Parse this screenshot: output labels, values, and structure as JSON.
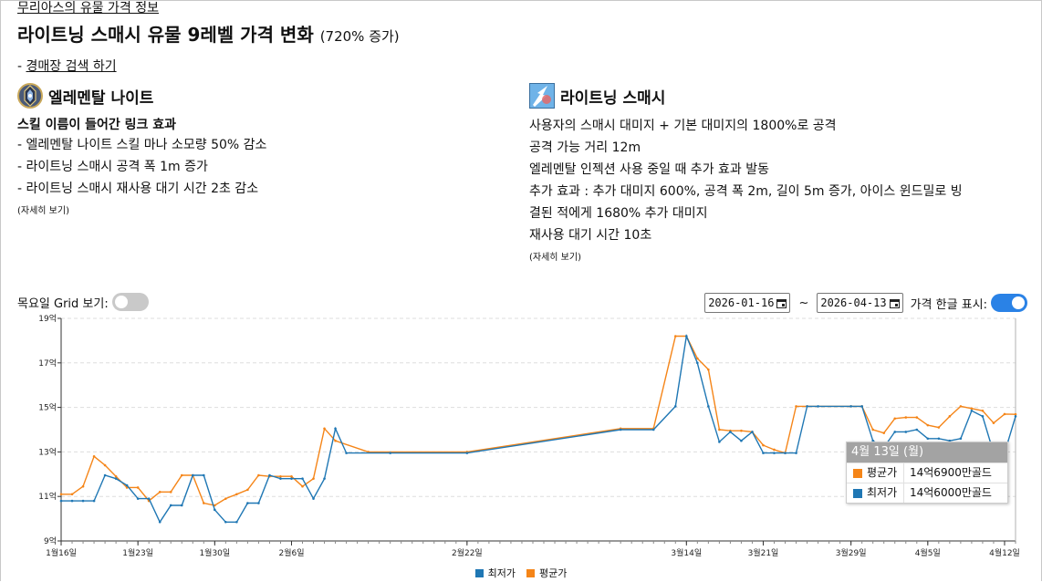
{
  "header": {
    "breadcrumb": "무리아스의 유물 가격 정보",
    "title": "라이트닝 스매시 유물 9레벨 가격 변화",
    "increase": "(720% 증가)",
    "auction_prefix": "- ",
    "auction_link": "경매장 검색 하기"
  },
  "left": {
    "name": "엘레멘탈 나이트",
    "icon": "elemental-knight-emblem-icon",
    "subtitle": "스킬 이름이 들어간 링크 효과",
    "lines": [
      "- 엘레멘탈 나이트 스킬 마나 소모량 50% 감소",
      "- 라이트닝 스매시 공격 폭 1m 증가",
      "- 라이트닝 스매시 재사용 대기 시간 2초 감소"
    ],
    "details": "(자세히 보기)"
  },
  "right": {
    "name": "라이트닝 스매시",
    "icon": "lightning-smash-skill-icon",
    "lines": [
      "사용자의 스매시 대미지 + 기본 대미지의 1800%로 공격",
      "공격 가능 거리 12m",
      "엘레멘탈 인젝션 사용 중일 때 추가 효과 발동",
      "추가 효과 : 추가 대미지 600%, 공격 폭 2m, 길이 5m 증가, 아이스 윈드밀로 빙",
      "결된 적에게 1680% 추가 대미지",
      "재사용 대기 시간 10초"
    ],
    "details": "(자세히 보기)"
  },
  "controls": {
    "grid_label": "목요일 Grid 보기:",
    "grid_on": false,
    "date_from": "2026-01-16",
    "date_to": "2026-04-13",
    "tilde": "~",
    "korean_label": "가격 한글 표시:",
    "korean_on": true
  },
  "tooltip": {
    "date": "4월 13일 (월)",
    "rows": [
      {
        "name": "평균가",
        "value": "14억6900만골드",
        "color": "#f58518"
      },
      {
        "name": "최저가",
        "value": "14억6000만골드",
        "color": "#1f77b4"
      }
    ]
  },
  "colors": {
    "min": "#1f77b4",
    "avg": "#f58518",
    "grid": "#dddddd",
    "axis": "#333333"
  },
  "chart_data": {
    "type": "line",
    "title": "",
    "xlabel": "",
    "ylabel": "",
    "ylim": [
      9,
      19
    ],
    "x_range": [
      "2026-01-16",
      "2026-04-13"
    ],
    "y_ticks": [
      9,
      11,
      13,
      15,
      17,
      19
    ],
    "y_tick_labels": [
      "9억",
      "11억",
      "13억",
      "15억",
      "17억",
      "19억"
    ],
    "x_ticks": [
      "2026-01-16",
      "2026-01-23",
      "2026-01-30",
      "2026-02-06",
      "2026-02-22",
      "2026-03-14",
      "2026-03-21",
      "2026-03-29",
      "2026-04-05",
      "2026-04-12"
    ],
    "x_tick_labels": [
      "1월16일",
      "1월23일",
      "1월30일",
      "2월6일",
      "2월22일",
      "3월14일",
      "3월21일",
      "3월29일",
      "4월5일",
      "4월12일"
    ],
    "legend_position": "bottom",
    "hover_date": "2026-04-13",
    "series": [
      {
        "name": "최저가",
        "key": "min",
        "points": [
          [
            "2026-01-16",
            10.8
          ],
          [
            "2026-01-17",
            10.8
          ],
          [
            "2026-01-18",
            10.8
          ],
          [
            "2026-01-19",
            10.8
          ],
          [
            "2026-01-20",
            11.95
          ],
          [
            "2026-01-21",
            11.8
          ],
          [
            "2026-01-22",
            11.5
          ],
          [
            "2026-01-23",
            10.9
          ],
          [
            "2026-01-24",
            10.9
          ],
          [
            "2026-01-25",
            9.85
          ],
          [
            "2026-01-26",
            10.6
          ],
          [
            "2026-01-27",
            10.6
          ],
          [
            "2026-01-28",
            11.95
          ],
          [
            "2026-01-29",
            11.95
          ],
          [
            "2026-01-30",
            10.4
          ],
          [
            "2026-01-31",
            9.85
          ],
          [
            "2026-02-01",
            9.85
          ],
          [
            "2026-02-02",
            10.7
          ],
          [
            "2026-02-03",
            10.7
          ],
          [
            "2026-02-04",
            11.95
          ],
          [
            "2026-02-05",
            11.8
          ],
          [
            "2026-02-06",
            11.8
          ],
          [
            "2026-02-07",
            11.8
          ],
          [
            "2026-02-08",
            10.9
          ],
          [
            "2026-02-09",
            11.8
          ],
          [
            "2026-02-10",
            14.05
          ],
          [
            "2026-02-11",
            12.95
          ],
          [
            "2026-02-15",
            12.95
          ],
          [
            "2026-02-22",
            12.95
          ],
          [
            "2026-03-08",
            14.0
          ],
          [
            "2026-03-11",
            14.0
          ],
          [
            "2026-03-13",
            15.05
          ],
          [
            "2026-03-14",
            18.2
          ],
          [
            "2026-03-15",
            17.0
          ],
          [
            "2026-03-16",
            15.05
          ],
          [
            "2026-03-17",
            13.45
          ],
          [
            "2026-03-18",
            13.9
          ],
          [
            "2026-03-19",
            13.5
          ],
          [
            "2026-03-20",
            13.9
          ],
          [
            "2026-03-21",
            12.95
          ],
          [
            "2026-03-22",
            12.95
          ],
          [
            "2026-03-23",
            12.95
          ],
          [
            "2026-03-24",
            12.95
          ],
          [
            "2026-03-25",
            15.05
          ],
          [
            "2026-03-26",
            15.05
          ],
          [
            "2026-03-29",
            15.05
          ],
          [
            "2026-03-30",
            15.05
          ],
          [
            "2026-03-31",
            13.5
          ],
          [
            "2026-04-01",
            13.2
          ],
          [
            "2026-04-02",
            13.9
          ],
          [
            "2026-04-03",
            13.9
          ],
          [
            "2026-04-04",
            14.0
          ],
          [
            "2026-04-05",
            13.6
          ],
          [
            "2026-04-06",
            13.6
          ],
          [
            "2026-04-07",
            13.5
          ],
          [
            "2026-04-08",
            13.6
          ],
          [
            "2026-04-09",
            14.85
          ],
          [
            "2026-04-10",
            14.6
          ],
          [
            "2026-04-11",
            12.95
          ],
          [
            "2026-04-12",
            12.95
          ],
          [
            "2026-04-13",
            14.6
          ]
        ]
      },
      {
        "name": "평균가",
        "key": "avg",
        "points": [
          [
            "2026-01-16",
            11.1
          ],
          [
            "2026-01-17",
            11.1
          ],
          [
            "2026-01-18",
            11.45
          ],
          [
            "2026-01-19",
            12.8
          ],
          [
            "2026-01-20",
            12.4
          ],
          [
            "2026-01-21",
            11.9
          ],
          [
            "2026-01-22",
            11.4
          ],
          [
            "2026-01-23",
            11.4
          ],
          [
            "2026-01-24",
            10.8
          ],
          [
            "2026-01-25",
            11.2
          ],
          [
            "2026-01-26",
            11.2
          ],
          [
            "2026-01-27",
            11.95
          ],
          [
            "2026-01-28",
            11.95
          ],
          [
            "2026-01-29",
            10.7
          ],
          [
            "2026-01-30",
            10.6
          ],
          [
            "2026-01-31",
            10.9
          ],
          [
            "2026-02-01",
            11.1
          ],
          [
            "2026-02-02",
            11.3
          ],
          [
            "2026-02-03",
            11.95
          ],
          [
            "2026-02-04",
            11.9
          ],
          [
            "2026-02-05",
            11.9
          ],
          [
            "2026-02-06",
            11.9
          ],
          [
            "2026-02-07",
            11.45
          ],
          [
            "2026-02-08",
            11.8
          ],
          [
            "2026-02-09",
            14.05
          ],
          [
            "2026-02-10",
            13.5
          ],
          [
            "2026-02-13",
            13.0
          ],
          [
            "2026-02-22",
            13.0
          ],
          [
            "2026-03-08",
            14.05
          ],
          [
            "2026-03-11",
            14.05
          ],
          [
            "2026-03-13",
            18.2
          ],
          [
            "2026-03-14",
            18.2
          ],
          [
            "2026-03-15",
            17.2
          ],
          [
            "2026-03-16",
            16.7
          ],
          [
            "2026-03-17",
            14.0
          ],
          [
            "2026-03-18",
            13.95
          ],
          [
            "2026-03-19",
            13.95
          ],
          [
            "2026-03-20",
            13.9
          ],
          [
            "2026-03-21",
            13.3
          ],
          [
            "2026-03-22",
            13.1
          ],
          [
            "2026-03-23",
            12.95
          ],
          [
            "2026-03-24",
            15.05
          ],
          [
            "2026-03-25",
            15.05
          ],
          [
            "2026-03-29",
            15.05
          ],
          [
            "2026-03-30",
            15.05
          ],
          [
            "2026-03-31",
            14.0
          ],
          [
            "2026-04-01",
            13.85
          ],
          [
            "2026-04-02",
            14.5
          ],
          [
            "2026-04-03",
            14.55
          ],
          [
            "2026-04-04",
            14.55
          ],
          [
            "2026-04-05",
            14.2
          ],
          [
            "2026-04-06",
            14.1
          ],
          [
            "2026-04-07",
            14.6
          ],
          [
            "2026-04-08",
            15.05
          ],
          [
            "2026-04-09",
            14.95
          ],
          [
            "2026-04-10",
            14.85
          ],
          [
            "2026-04-11",
            14.3
          ],
          [
            "2026-04-12",
            14.7
          ],
          [
            "2026-04-13",
            14.69
          ]
        ]
      }
    ]
  }
}
